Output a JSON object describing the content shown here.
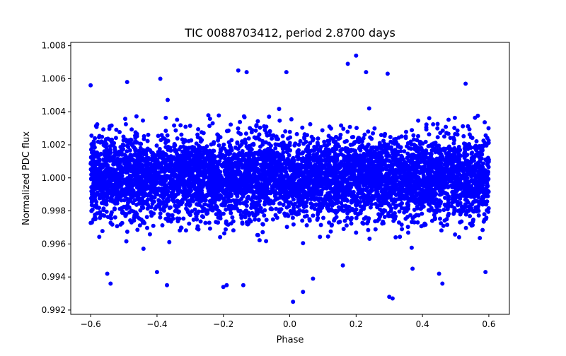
{
  "chart_data": {
    "type": "scatter",
    "title": "TIC 0088703412, period 2.8700 days",
    "xlabel": "Phase",
    "ylabel": "Normalized PDC flux",
    "xlim": [
      -0.66,
      0.662
    ],
    "ylim": [
      0.99174,
      1.0082
    ],
    "xticks": [
      -0.6,
      -0.4,
      -0.2,
      0.0,
      0.2,
      0.4,
      0.6
    ],
    "xtick_labels": [
      "−0.6",
      "−0.4",
      "−0.2",
      "0.0",
      "0.2",
      "0.4",
      "0.6"
    ],
    "yticks": [
      0.992,
      0.994,
      0.996,
      0.998,
      1.0,
      1.002,
      1.004,
      1.006,
      1.008
    ],
    "ytick_labels": [
      "0.992",
      "0.994",
      "0.996",
      "0.998",
      "1.000",
      "1.002",
      "1.004",
      "1.006",
      "1.008"
    ],
    "grid": false,
    "marker_color": "#0000ff",
    "bulk_distribution": {
      "note": "dense phase-folded cloud",
      "n_points": 6000,
      "phase_range": [
        -0.6,
        0.6
      ],
      "flux_mean": 1.0,
      "flux_std": 0.00125,
      "seed": 88703412
    },
    "outliers": [
      [
        0.2,
        1.0074
      ],
      [
        0.175,
        1.0069
      ],
      [
        -0.155,
        1.0065
      ],
      [
        -0.13,
        1.0064
      ],
      [
        -0.01,
        1.0064
      ],
      [
        0.23,
        1.0064
      ],
      [
        0.295,
        1.0063
      ],
      [
        -0.6,
        1.0056
      ],
      [
        -0.39,
        1.006
      ],
      [
        0.53,
        1.0057
      ],
      [
        -0.49,
        1.0058
      ],
      [
        0.01,
        0.9925
      ],
      [
        0.31,
        0.9927
      ],
      [
        0.3,
        0.9928
      ],
      [
        0.04,
        0.9931
      ],
      [
        -0.54,
        0.9936
      ],
      [
        -0.37,
        0.9935
      ],
      [
        -0.19,
        0.9935
      ],
      [
        -0.2,
        0.9934
      ],
      [
        0.59,
        0.9943
      ],
      [
        -0.4,
        0.9943
      ],
      [
        0.46,
        0.9936
      ],
      [
        0.07,
        0.9939
      ],
      [
        -0.14,
        0.9935
      ],
      [
        0.45,
        0.9942
      ],
      [
        -0.55,
        0.9942
      ],
      [
        0.16,
        0.9947
      ],
      [
        0.37,
        0.9945
      ]
    ]
  }
}
